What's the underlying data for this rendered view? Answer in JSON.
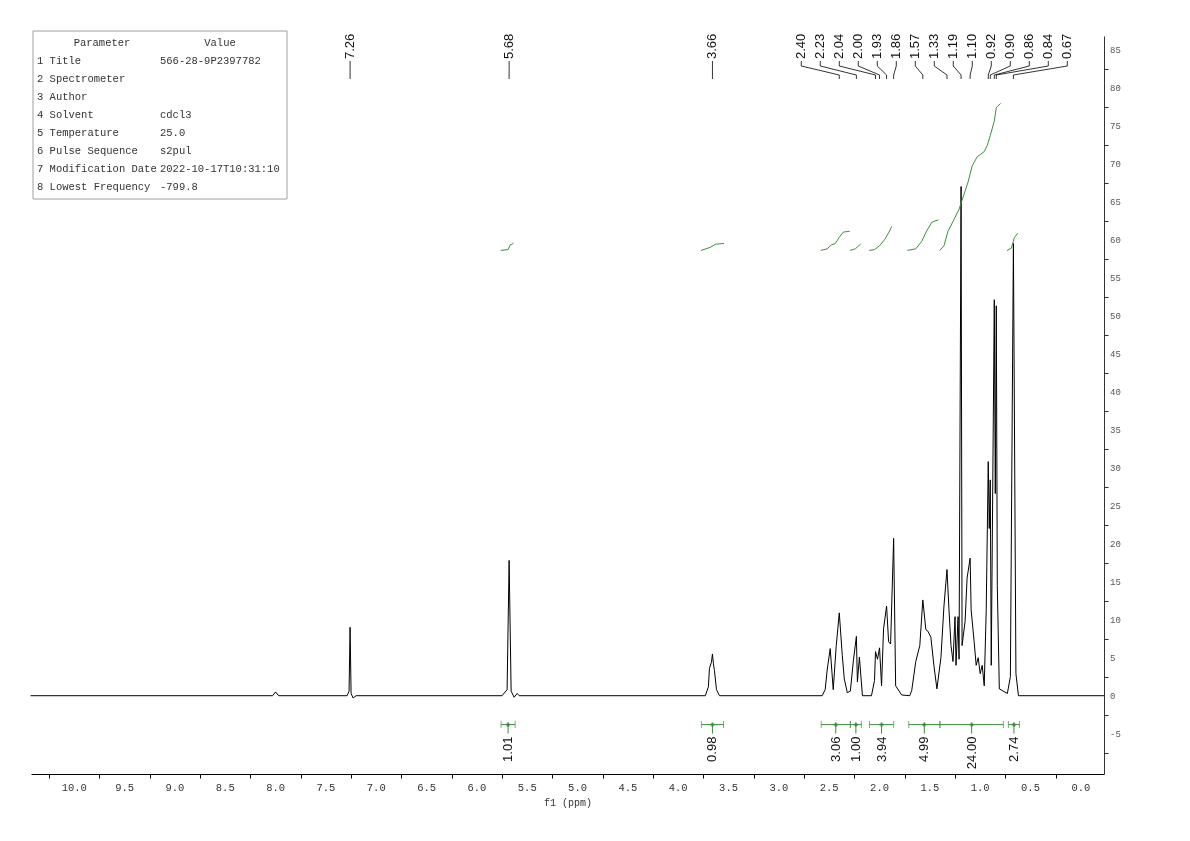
{
  "chart_data": {
    "type": "line",
    "xlabel": "f1 (ppm)",
    "xlim": [
      10.43,
      -0.23
    ],
    "xticks": [
      {
        "value": 10.25,
        "label": null
      },
      {
        "value": 10,
        "label": "10.0"
      },
      {
        "value": 9.75,
        "label": null
      },
      9.5,
      {
        "value": 9.25,
        "label": null
      },
      {
        "value": 9,
        "label": "9.0"
      },
      {
        "value": 8.75,
        "label": null
      },
      8.5,
      {
        "value": 8.25,
        "label": null
      },
      {
        "value": 8,
        "label": "8.0"
      },
      {
        "value": 7.75,
        "label": null
      },
      7.5,
      {
        "value": 7.25,
        "label": null
      },
      {
        "value": 7,
        "label": "7.0"
      },
      {
        "value": 6.75,
        "label": null
      },
      6.5,
      {
        "value": 6.25,
        "label": null
      },
      {
        "value": 6,
        "label": "6.0"
      },
      {
        "value": 5.75,
        "label": null
      },
      5.5,
      {
        "value": 5.25,
        "label": null
      },
      {
        "value": 5,
        "label": "5.0"
      },
      {
        "value": 4.75,
        "label": null
      },
      4.5,
      {
        "value": 4.25,
        "label": null
      },
      {
        "value": 4,
        "label": "4.0"
      },
      {
        "value": 3.75,
        "label": null
      },
      3.5,
      {
        "value": 3.25,
        "label": null
      },
      {
        "value": 3,
        "label": "3.0"
      },
      {
        "value": 2.75,
        "label": null
      },
      2.5,
      {
        "value": 2.25,
        "label": null
      },
      {
        "value": 2,
        "label": "2.0"
      },
      {
        "value": 1.75,
        "label": null
      },
      1.5,
      {
        "value": 1.25,
        "label": null
      },
      {
        "value": 1,
        "label": "1.0"
      },
      {
        "value": 0.75,
        "label": null
      },
      0.5,
      {
        "value": 0.25,
        "label": null
      },
      {
        "value": 0,
        "label": "0.0"
      }
    ],
    "ylim": [
      -10.3,
      86.8
    ],
    "yticks": [
      {
        "value": -7.5,
        "label": null
      },
      -5,
      {
        "value": -2.5,
        "label": null
      },
      0,
      {
        "value": 2.5,
        "label": null
      },
      5,
      {
        "value": 7.5,
        "label": null
      },
      10,
      {
        "value": 12.5,
        "label": null
      },
      15,
      {
        "value": 17.5,
        "label": null
      },
      20,
      {
        "value": 22.5,
        "label": null
      },
      25,
      {
        "value": 27.5,
        "label": null
      },
      30,
      {
        "value": 32.5,
        "label": null
      },
      35,
      {
        "value": 37.5,
        "label": null
      },
      40,
      {
        "value": 42.5,
        "label": null
      },
      45,
      {
        "value": 47.5,
        "label": null
      },
      50,
      {
        "value": 52.5,
        "label": null
      },
      55,
      {
        "value": 57.5,
        "label": null
      },
      60,
      {
        "value": 62.5,
        "label": null
      },
      65,
      {
        "value": 67.5,
        "label": null
      },
      70,
      {
        "value": 72.5,
        "label": null
      },
      75,
      {
        "value": 77.5,
        "label": null
      },
      80,
      {
        "value": 82.5,
        "label": null
      },
      85
    ],
    "series": [
      {
        "color": "#000000",
        "x": [
          10.43,
          8.03,
          8.0,
          7.97,
          7.29,
          7.27,
          7.26,
          7.25,
          7.23,
          7.2,
          5.75,
          5.7,
          5.68,
          5.66,
          5.63,
          5.6,
          5.58,
          3.73,
          3.7,
          3.69,
          3.67,
          3.66,
          3.65,
          3.64,
          3.62,
          3.59,
          2.57,
          2.54,
          2.52,
          2.49,
          2.46,
          2.43,
          2.4,
          2.37,
          2.35,
          2.32,
          2.29,
          2.26,
          2.23,
          2.22,
          2.2,
          2.17,
          2.08,
          2.05,
          2.04,
          2.02,
          2.0,
          1.98,
          1.96,
          1.93,
          1.91,
          1.89,
          1.86,
          1.84,
          1.78,
          1.7,
          1.68,
          1.64,
          1.6,
          1.57,
          1.54,
          1.52,
          1.49,
          1.46,
          1.43,
          1.39,
          1.36,
          1.33,
          1.31,
          1.29,
          1.27,
          1.25,
          1.24,
          1.22,
          1.21,
          1.19,
          1.18,
          1.15,
          1.13,
          1.1,
          1.09,
          1.06,
          1.04,
          1.02,
          1.0,
          0.98,
          0.96,
          0.94,
          0.92,
          0.91,
          0.9,
          0.89,
          0.86,
          0.85,
          0.84,
          0.83,
          0.81,
          0.73,
          0.7,
          0.67,
          0.645,
          0.62,
          -0.23
        ],
        "values": [
          0,
          0,
          0.5,
          0,
          0,
          0.6,
          9.0,
          0.3,
          -0.3,
          0,
          0,
          0.8,
          17.8,
          0.6,
          -0.2,
          0.3,
          0,
          0,
          1.2,
          3.6,
          4.4,
          5.5,
          4.2,
          3.3,
          0.8,
          0,
          0,
          0.8,
          3.4,
          6.2,
          0.8,
          6.6,
          10.9,
          5.3,
          2.2,
          0.4,
          0.6,
          4.6,
          7.8,
          1.8,
          5.1,
          0,
          0,
          2.0,
          5.8,
          4.8,
          6.3,
          1.3,
          8.8,
          11.8,
          7.1,
          6.8,
          20.7,
          1.3,
          0.1,
          0,
          0.7,
          4.5,
          6.6,
          12.6,
          8.7,
          8.5,
          7.7,
          4.0,
          0.9,
          5.0,
          11.8,
          16.6,
          11.3,
          6.6,
          4.5,
          10.4,
          4.0,
          10.4,
          4.8,
          67.0,
          6.6,
          9.8,
          15.5,
          18.1,
          11.3,
          7.1,
          4.0,
          5.0,
          2.9,
          4.0,
          1.3,
          11.3,
          30.8,
          22.0,
          28.4,
          4.0,
          52.1,
          26.6,
          51.3,
          14.5,
          0.9,
          0.3,
          2.5,
          59.5,
          2.9,
          0,
          0
        ]
      },
      {
        "color": "#3d8f3d",
        "x": [
          5.76,
          5.69,
          5.67,
          5.64,
          null,
          3.77,
          3.68,
          3.63,
          3.55,
          null,
          2.58,
          2.52,
          2.48,
          2.44,
          2.4,
          2.36,
          2.3,
          null,
          2.29,
          2.24,
          2.19,
          null,
          2.1,
          2.05,
          2.0,
          1.95,
          1.91,
          1.88,
          null,
          1.72,
          1.64,
          1.58,
          1.53,
          1.48,
          1.42,
          null,
          1.4,
          1.36,
          1.32,
          1.27,
          1.21,
          1.16,
          1.12,
          1.08,
          1.03,
          0.96,
          0.93,
          0.9,
          0.86,
          0.84,
          0.8,
          null,
          0.73,
          0.69,
          0.66,
          0.63
        ],
        "values": [
          58.6,
          58.7,
          59.3,
          59.5,
          null,
          58.6,
          59.0,
          59.4,
          59.5,
          null,
          58.6,
          58.8,
          59.3,
          59.5,
          60.3,
          61.0,
          61.1,
          null,
          58.6,
          58.8,
          59.4,
          null,
          58.6,
          58.7,
          59.2,
          60.0,
          60.9,
          61.7,
          null,
          58.6,
          58.8,
          59.8,
          61.2,
          62.3,
          62.6,
          null,
          58.6,
          59.2,
          61.1,
          62.4,
          64.0,
          66.0,
          67.6,
          69.7,
          70.9,
          71.6,
          72.4,
          73.7,
          75.6,
          77.4,
          77.9,
          null,
          58.6,
          58.9,
          60.3,
          60.8
        ]
      },
      {
        "type": "scatter",
        "color": "#3d8f3d",
        "marker": "cross",
        "x": [
          5.69,
          3.66,
          2.435,
          2.235,
          1.98,
          1.555,
          1.085,
          0.665
        ],
        "values": [
          -3.8,
          -3.8,
          -3.8,
          -3.8,
          -3.8,
          -3.8,
          -3.8,
          -3.8
        ],
        "xerrors": [
          0.07,
          0.11,
          0.145,
          0.055,
          0.12,
          0.155,
          0.315,
          0.055
        ]
      }
    ],
    "annotations": [
      "Parameter\tValue",
      "1 Title\t566-28-9P2397782",
      "2 Spectrometer",
      "3 Author",
      "4 Solvent\tcdcl3",
      "5 Temperature\t25.0",
      "6 Pulse Sequence\ts2pul",
      "7 Modification Date\t2022-10-17T10:31:10",
      "8 Lowest Frequency\t-799.8",
      {
        "text": "7.26",
        "x": 7.26
      },
      {
        "text": "5.68",
        "x": 5.68
      },
      {
        "text": "3.66",
        "x": 3.66
      },
      {
        "text": "2.40",
        "x": 2.4
      },
      {
        "text": "2.23",
        "x": 2.23
      },
      {
        "text": "2.04",
        "x": 2.04
      },
      {
        "text": "2.00",
        "x": 2.0
      },
      {
        "text": "1.93",
        "x": 1.93
      },
      {
        "text": "1.86",
        "x": 1.86
      },
      {
        "text": "1.57",
        "x": 1.57
      },
      {
        "text": "1.33",
        "x": 1.33
      },
      {
        "text": "1.19",
        "x": 1.19
      },
      {
        "text": "1.10",
        "x": 1.1
      },
      {
        "text": "0.92",
        "x": 0.92
      },
      {
        "text": "0.90",
        "x": 0.9
      },
      {
        "text": "0.86",
        "x": 0.86
      },
      {
        "text": "0.84",
        "x": 0.84
      },
      {
        "text": "0.67",
        "x": 0.67
      },
      {
        "text": "1.01",
        "x": 5.69,
        "y": -3.8
      },
      {
        "text": "0.98",
        "x": 3.66,
        "y": -3.8
      },
      {
        "text": "3.06",
        "x": 2.435,
        "y": -3.8
      },
      {
        "text": "1.00",
        "x": 2.235,
        "y": -3.8
      },
      {
        "text": "3.94",
        "x": 1.98,
        "y": -3.8
      },
      {
        "text": "4.99",
        "x": 1.555,
        "y": -3.8
      },
      {
        "text": "24.00",
        "x": 1.085,
        "y": -3.8
      },
      {
        "text": "2.74",
        "x": 0.665,
        "y": -3.8
      }
    ]
  }
}
